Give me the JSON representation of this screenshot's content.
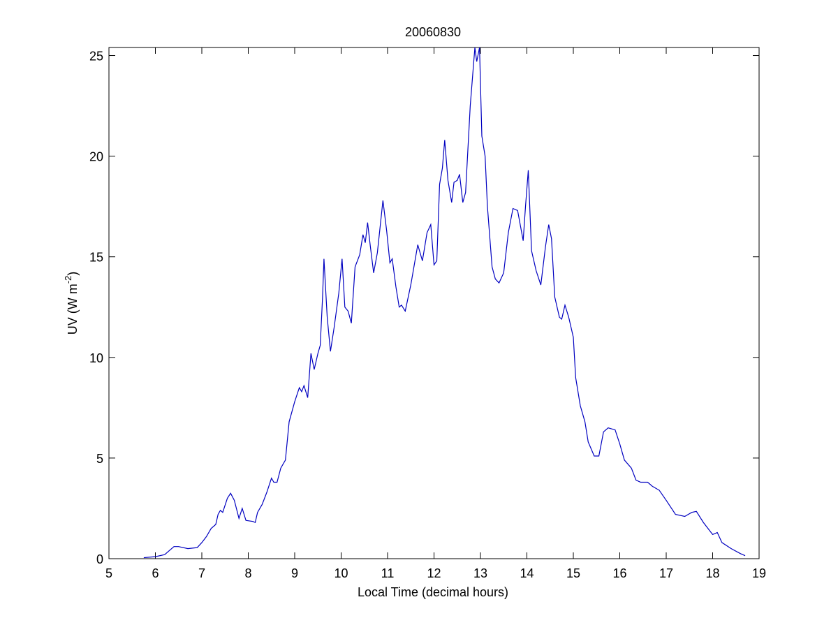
{
  "chart_data": {
    "type": "line",
    "title": "20060830",
    "xlabel": "Local Time (decimal hours)",
    "ylabel": {
      "text": "UV (W m",
      "sup": "-2",
      "end": ")"
    },
    "color": "#0000c0",
    "x": [
      5.75,
      6.0,
      6.2,
      6.4,
      6.5,
      6.7,
      6.9,
      7.0,
      7.1,
      7.2,
      7.3,
      7.35,
      7.4,
      7.45,
      7.55,
      7.62,
      7.7,
      7.8,
      7.87,
      7.95,
      8.1,
      8.15,
      8.2,
      8.3,
      8.4,
      8.5,
      8.55,
      8.62,
      8.7,
      8.8,
      8.88,
      9.0,
      9.1,
      9.15,
      9.2,
      9.28,
      9.35,
      9.42,
      9.5,
      9.55,
      9.6,
      9.63,
      9.7,
      9.77,
      9.85,
      9.95,
      10.02,
      10.08,
      10.15,
      10.22,
      10.3,
      10.4,
      10.47,
      10.52,
      10.57,
      10.63,
      10.7,
      10.78,
      10.9,
      10.98,
      11.05,
      11.1,
      11.18,
      11.25,
      11.3,
      11.38,
      11.5,
      11.65,
      11.75,
      11.85,
      11.93,
      12.0,
      12.06,
      12.12,
      12.18,
      12.23,
      12.3,
      12.38,
      12.43,
      12.5,
      12.55,
      12.62,
      12.68,
      12.78,
      12.88,
      12.92,
      12.98,
      13.03,
      13.1,
      13.15,
      13.25,
      13.32,
      13.4,
      13.5,
      13.6,
      13.7,
      13.8,
      13.92,
      13.97,
      14.03,
      14.1,
      14.2,
      14.3,
      14.4,
      14.47,
      14.53,
      14.6,
      14.7,
      14.75,
      14.82,
      14.9,
      15.0,
      15.05,
      15.15,
      15.25,
      15.32,
      15.45,
      15.55,
      15.65,
      15.75,
      15.9,
      16.0,
      16.1,
      16.25,
      16.35,
      16.45,
      16.6,
      16.7,
      16.85,
      17.0,
      17.2,
      17.4,
      17.55,
      17.65,
      17.8,
      18.0,
      18.1,
      18.2,
      18.4,
      18.6,
      18.7
    ],
    "values": [
      0.05,
      0.1,
      0.2,
      0.6,
      0.6,
      0.5,
      0.55,
      0.8,
      1.1,
      1.5,
      1.7,
      2.2,
      2.4,
      2.3,
      3.0,
      3.25,
      2.9,
      2.0,
      2.5,
      1.9,
      1.85,
      1.8,
      2.3,
      2.7,
      3.3,
      4.0,
      3.8,
      3.8,
      4.5,
      4.9,
      6.8,
      7.8,
      8.5,
      8.3,
      8.6,
      8.0,
      10.2,
      9.4,
      10.2,
      10.6,
      13.0,
      14.9,
      12.0,
      10.3,
      11.5,
      13.2,
      14.9,
      12.5,
      12.3,
      11.7,
      14.5,
      15.1,
      16.1,
      15.7,
      16.7,
      15.5,
      14.2,
      15.2,
      17.8,
      16.3,
      14.7,
      14.9,
      13.5,
      12.5,
      12.6,
      12.3,
      13.6,
      15.6,
      14.8,
      16.2,
      16.6,
      14.6,
      14.8,
      18.6,
      19.4,
      20.8,
      18.8,
      17.7,
      18.7,
      18.8,
      19.1,
      17.7,
      18.2,
      22.5,
      25.4,
      24.7,
      25.4,
      21.0,
      20.0,
      17.5,
      14.5,
      13.9,
      13.7,
      14.2,
      16.2,
      17.4,
      17.3,
      15.8,
      17.5,
      19.3,
      15.3,
      14.3,
      13.6,
      15.5,
      16.6,
      15.9,
      13.0,
      12.0,
      11.9,
      12.6,
      12.0,
      11.0,
      9.0,
      7.6,
      6.8,
      5.8,
      5.1,
      5.1,
      6.3,
      6.5,
      6.4,
      5.7,
      4.9,
      4.5,
      3.9,
      3.8,
      3.8,
      3.6,
      3.4,
      2.9,
      2.2,
      2.1,
      2.3,
      2.35,
      1.8,
      1.2,
      1.3,
      0.8,
      0.5,
      0.25,
      0.15
    ],
    "xlim": [
      5,
      19
    ],
    "xticks": [
      5,
      6,
      7,
      8,
      9,
      10,
      11,
      12,
      13,
      14,
      15,
      16,
      17,
      18,
      19
    ],
    "ylim": [
      0,
      25.4
    ],
    "yticks": [
      0,
      5,
      10,
      15,
      20,
      25
    ],
    "grid": false
  }
}
